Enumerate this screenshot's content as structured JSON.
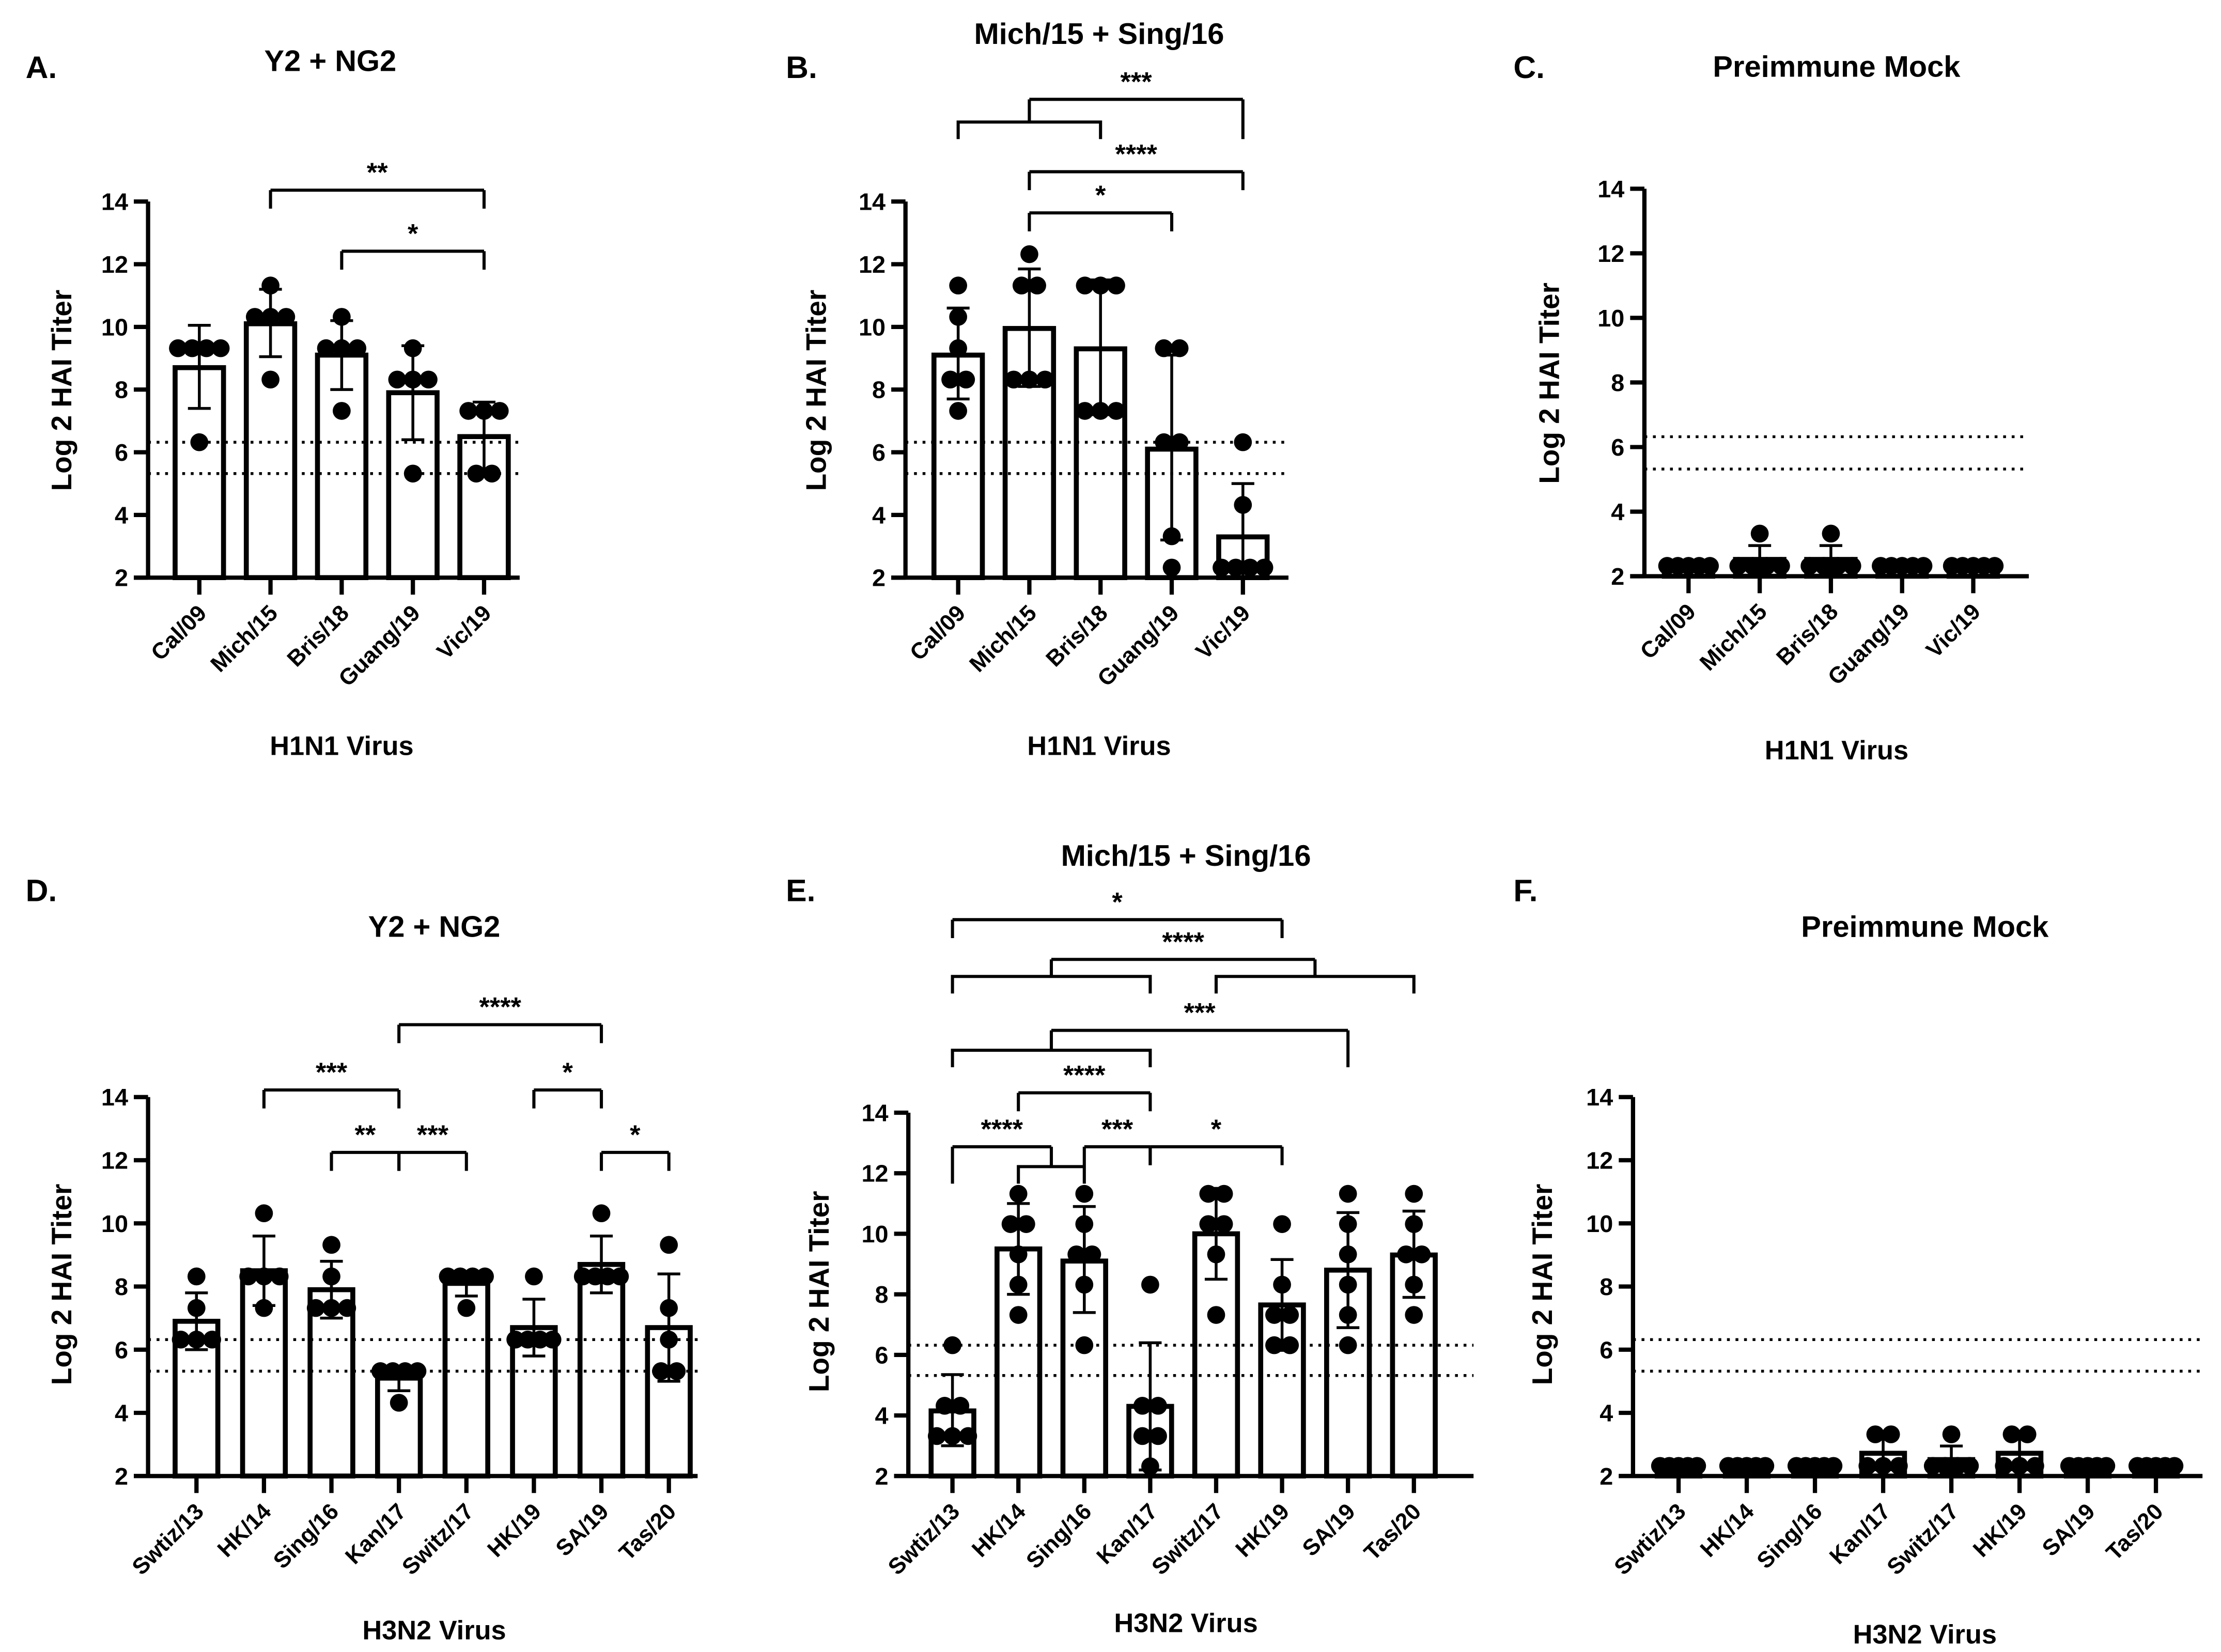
{
  "chart_data": [
    {
      "type": "bar",
      "panel": "A.",
      "title": "Y2 + NG2",
      "xlabel": "H1N1 Virus",
      "ylabel": "Log 2 HAI Titer",
      "ylim": [
        2,
        14
      ],
      "yticks": [
        "2",
        "4",
        "6",
        "8",
        "10",
        "12",
        "14"
      ],
      "thresholds": [
        6.32,
        5.32
      ],
      "categories": [
        "Cal/09",
        "Mich/15",
        "Bris/18",
        "Guang/19",
        "Vic/19"
      ],
      "means": [
        8.7,
        10.1,
        9.1,
        7.9,
        6.5
      ],
      "err_low": [
        7.4,
        9.05,
        8.0,
        6.4,
        5.4
      ],
      "err_high": [
        10.05,
        11.2,
        10.2,
        9.4,
        7.6
      ],
      "points": [
        [
          9.32,
          9.32,
          9.32,
          9.32,
          6.32
        ],
        [
          11.32,
          10.32,
          10.32,
          10.32,
          8.32
        ],
        [
          10.32,
          9.32,
          9.32,
          9.32,
          7.32
        ],
        [
          9.32,
          8.32,
          8.32,
          8.32,
          5.32
        ],
        [
          7.32,
          7.32,
          7.32,
          5.32,
          5.32
        ]
      ],
      "comparisons": [
        {
          "left": [
            1
          ],
          "right": [
            4
          ],
          "label": "**"
        },
        {
          "left": [
            2
          ],
          "right": [
            4
          ],
          "label": "*"
        }
      ]
    },
    {
      "type": "bar",
      "panel": "B.",
      "title": "Mich/15 + Sing/16",
      "xlabel": "H1N1 Virus",
      "ylabel": "Log 2 HAI Titer",
      "ylim": [
        2,
        14
      ],
      "yticks": [
        "2",
        "4",
        "6",
        "8",
        "10",
        "12",
        "14"
      ],
      "thresholds": [
        6.32,
        5.32
      ],
      "categories": [
        "Cal/09",
        "Mich/15",
        "Bris/18",
        "Guang/19",
        "Vic/19"
      ],
      "means": [
        9.1,
        9.95,
        9.3,
        6.1,
        3.3
      ],
      "err_low": [
        7.7,
        8.1,
        7.2,
        3.2,
        2.0
      ],
      "err_high": [
        10.6,
        11.85,
        11.5,
        9.1,
        5.0
      ],
      "points": [
        [
          11.32,
          10.32,
          9.32,
          8.32,
          8.32,
          7.32
        ],
        [
          12.32,
          11.32,
          11.32,
          8.32,
          8.32,
          8.32
        ],
        [
          11.32,
          11.32,
          11.32,
          7.32,
          7.32,
          7.32
        ],
        [
          9.32,
          9.32,
          6.32,
          6.32,
          3.32,
          2.32
        ],
        [
          6.32,
          4.32,
          2.32,
          2.32,
          2.32,
          2.32
        ]
      ],
      "comparisons": [
        {
          "left": [
            0,
            2
          ],
          "right": [
            4
          ],
          "label": "***"
        },
        {
          "left": [
            1
          ],
          "right": [
            4
          ],
          "label": "****"
        },
        {
          "left": [
            1
          ],
          "right": [
            3
          ],
          "label": "*"
        }
      ]
    },
    {
      "type": "bar",
      "panel": "C.",
      "title": "Preimmune Mock",
      "xlabel": "H1N1 Virus",
      "ylabel": "Log 2 HAI Titer",
      "ylim": [
        2,
        14
      ],
      "yticks": [
        "2",
        "4",
        "6",
        "8",
        "10",
        "12",
        "14"
      ],
      "thresholds": [
        6.32,
        5.32
      ],
      "categories": [
        "Cal/09",
        "Mich/15",
        "Bris/18",
        "Guang/19",
        "Vic/19"
      ],
      "means": [
        2.32,
        2.52,
        2.52,
        2.32,
        2.32
      ],
      "err_low": [
        2.32,
        2.1,
        2.1,
        2.32,
        2.32
      ],
      "err_high": [
        2.32,
        2.95,
        2.95,
        2.32,
        2.32
      ],
      "points": [
        [
          2.32,
          2.32,
          2.32,
          2.32,
          2.32
        ],
        [
          3.32,
          2.32,
          2.32,
          2.32,
          2.32
        ],
        [
          3.32,
          2.32,
          2.32,
          2.32,
          2.32
        ],
        [
          2.32,
          2.32,
          2.32,
          2.32,
          2.32
        ],
        [
          2.32,
          2.32,
          2.32,
          2.32,
          2.32
        ]
      ],
      "comparisons": []
    },
    {
      "type": "bar",
      "panel": "D.",
      "title": "Y2 + NG2",
      "xlabel": "H3N2 Virus",
      "ylabel": "Log 2 HAI Titer",
      "ylim": [
        2,
        14
      ],
      "yticks": [
        "2",
        "4",
        "6",
        "8",
        "10",
        "12",
        "14"
      ],
      "thresholds": [
        6.32,
        5.32
      ],
      "categories": [
        "Swtiz/13",
        "HK/14",
        "Sing/16",
        "Kan/17",
        "Switz/17",
        "HK/19",
        "SA/19",
        "Tas/20"
      ],
      "means": [
        6.9,
        8.5,
        7.9,
        5.1,
        8.1,
        6.7,
        8.7,
        6.7
      ],
      "err_low": [
        6.0,
        7.4,
        7.0,
        4.7,
        7.7,
        5.8,
        7.8,
        5.0
      ],
      "err_high": [
        7.8,
        9.6,
        8.8,
        5.3,
        8.3,
        7.6,
        9.6,
        8.4
      ],
      "points": [
        [
          8.32,
          7.32,
          6.32,
          6.32,
          6.32
        ],
        [
          10.32,
          8.32,
          8.32,
          8.32,
          7.32
        ],
        [
          9.32,
          8.32,
          7.32,
          7.32,
          7.32
        ],
        [
          5.32,
          5.32,
          5.32,
          5.32,
          4.32
        ],
        [
          8.32,
          8.32,
          8.32,
          8.32,
          7.32
        ],
        [
          8.32,
          6.32,
          6.32,
          6.32,
          6.32
        ],
        [
          10.32,
          8.32,
          8.32,
          8.32,
          8.32
        ],
        [
          9.32,
          7.32,
          6.32,
          5.32,
          5.32
        ]
      ],
      "comparisons": [
        {
          "left": [
            3
          ],
          "right": [
            6
          ],
          "label": "****"
        },
        {
          "left": [
            1
          ],
          "right": [
            3
          ],
          "label": "***"
        },
        {
          "left": [
            5
          ],
          "right": [
            6
          ],
          "label": "*"
        },
        {
          "left": [
            2
          ],
          "right": [
            3
          ],
          "label": "**"
        },
        {
          "left": [
            3
          ],
          "right": [
            4
          ],
          "label": "***"
        },
        {
          "left": [
            6
          ],
          "right": [
            7
          ],
          "label": "*"
        }
      ]
    },
    {
      "type": "bar",
      "panel": "E.",
      "title": "Mich/15 + Sing/16",
      "xlabel": "H3N2 Virus",
      "ylabel": "Log 2 HAI Titer",
      "ylim": [
        2,
        14
      ],
      "yticks": [
        "2",
        "4",
        "6",
        "8",
        "10",
        "12",
        "14"
      ],
      "thresholds": [
        6.32,
        5.32
      ],
      "categories": [
        "Swtiz/13",
        "HK/14",
        "Sing/16",
        "Kan/17",
        "Switz/17",
        "HK/19",
        "SA/19",
        "Tas/20"
      ],
      "means": [
        4.15,
        9.5,
        9.1,
        4.3,
        10.0,
        7.65,
        8.8,
        9.3
      ],
      "err_low": [
        3.0,
        8.0,
        7.4,
        2.2,
        8.5,
        6.15,
        6.9,
        7.9
      ],
      "err_high": [
        5.35,
        11.0,
        10.9,
        6.4,
        11.5,
        9.15,
        10.7,
        10.75
      ],
      "points": [
        [
          6.32,
          4.32,
          4.32,
          3.32,
          3.32,
          3.32
        ],
        [
          11.32,
          10.32,
          10.32,
          9.32,
          8.32,
          7.32
        ],
        [
          11.32,
          10.32,
          9.32,
          9.32,
          8.32,
          6.32
        ],
        [
          8.32,
          4.32,
          4.32,
          3.32,
          3.32,
          2.32
        ],
        [
          11.32,
          11.32,
          10.32,
          10.32,
          9.32,
          7.32
        ],
        [
          10.32,
          8.32,
          7.32,
          7.32,
          6.32,
          6.32
        ],
        [
          11.32,
          10.32,
          9.32,
          8.32,
          7.32,
          6.32
        ],
        [
          11.32,
          10.32,
          9.32,
          9.32,
          8.32,
          7.32
        ]
      ],
      "comparisons": [
        {
          "left": [
            0
          ],
          "right": [
            5
          ],
          "label": "*"
        },
        {
          "left": [
            0,
            3
          ],
          "right": [
            4,
            7
          ],
          "label": "****"
        },
        {
          "left": [
            0,
            3
          ],
          "right": [
            6
          ],
          "label": "***"
        },
        {
          "left": [
            1
          ],
          "right": [
            3
          ],
          "label": "****"
        },
        {
          "left": [
            0
          ],
          "right": [
            1,
            2
          ],
          "label": "****"
        },
        {
          "left": [
            2
          ],
          "right": [
            3
          ],
          "label": "***"
        },
        {
          "left": [
            3
          ],
          "right": [
            5
          ],
          "label": "*"
        }
      ]
    },
    {
      "type": "bar",
      "panel": "F.",
      "title": "Preimmune Mock",
      "xlabel": "H3N2 Virus",
      "ylabel": "Log 2 HAI Titer",
      "ylim": [
        2,
        14
      ],
      "yticks": [
        "2",
        "4",
        "6",
        "8",
        "10",
        "12",
        "14"
      ],
      "thresholds": [
        6.32,
        5.32
      ],
      "categories": [
        "Swtiz/13",
        "HK/14",
        "Sing/16",
        "Kan/17",
        "Switz/17",
        "HK/19",
        "SA/19",
        "Tas/20"
      ],
      "means": [
        2.32,
        2.32,
        2.32,
        2.72,
        2.52,
        2.72,
        2.32,
        2.32
      ],
      "err_low": [
        2.32,
        2.32,
        2.32,
        2.2,
        2.1,
        2.2,
        2.32,
        2.32
      ],
      "err_high": [
        2.32,
        2.32,
        2.32,
        3.25,
        2.95,
        3.25,
        2.32,
        2.32
      ],
      "points": [
        [
          2.32,
          2.32,
          2.32,
          2.32,
          2.32
        ],
        [
          2.32,
          2.32,
          2.32,
          2.32,
          2.32
        ],
        [
          2.32,
          2.32,
          2.32,
          2.32,
          2.32
        ],
        [
          3.32,
          3.32,
          2.32,
          2.32,
          2.32
        ],
        [
          3.32,
          2.32,
          2.32,
          2.32,
          2.32
        ],
        [
          3.32,
          3.32,
          2.32,
          2.32,
          2.32
        ],
        [
          2.32,
          2.32,
          2.32,
          2.32,
          2.32
        ],
        [
          2.32,
          2.32,
          2.32,
          2.32,
          2.32
        ]
      ],
      "comparisons": []
    }
  ]
}
